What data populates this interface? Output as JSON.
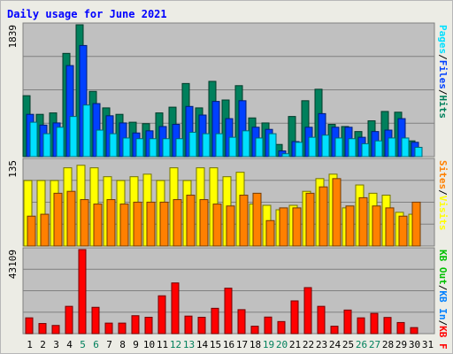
{
  "chart_data": [
    {
      "type": "bar",
      "panel": "pages_files_hits",
      "title": "Daily usage for June 2021",
      "ylabel_parts": [
        {
          "text": "Hits",
          "color": "#00805c"
        },
        {
          "text": "/",
          "color": "#000000"
        },
        {
          "text": "Files",
          "color": "#0040ff"
        },
        {
          "text": "/",
          "color": "#000000"
        },
        {
          "text": "Pages",
          "color": "#00e0ff"
        }
      ],
      "max_label": "1839",
      "ylim": [
        0,
        1839
      ],
      "categories": [
        "1",
        "2",
        "3",
        "4",
        "5",
        "6",
        "7",
        "8",
        "9",
        "10",
        "11",
        "12",
        "13",
        "14",
        "15",
        "16",
        "17",
        "18",
        "19",
        "20",
        "21",
        "22",
        "23",
        "24",
        "25",
        "26",
        "27",
        "28",
        "29",
        "30",
        "31"
      ],
      "series": [
        {
          "name": "Hits",
          "color": "#00805c",
          "values": [
            850,
            590,
            610,
            1440,
            1839,
            910,
            680,
            590,
            480,
            460,
            610,
            690,
            1020,
            680,
            1050,
            790,
            990,
            540,
            470,
            170,
            560,
            780,
            940,
            450,
            420,
            350,
            500,
            630,
            620,
            220,
            0
          ]
        },
        {
          "name": "Files",
          "color": "#0040ff",
          "values": [
            590,
            440,
            470,
            1270,
            1550,
            740,
            570,
            470,
            330,
            360,
            420,
            450,
            700,
            580,
            770,
            530,
            780,
            410,
            380,
            80,
            210,
            410,
            600,
            410,
            410,
            270,
            350,
            370,
            530,
            200,
            0
          ]
        },
        {
          "name": "Pages",
          "color": "#00e0ff",
          "values": [
            480,
            320,
            410,
            560,
            720,
            370,
            320,
            260,
            250,
            250,
            250,
            250,
            340,
            320,
            320,
            270,
            360,
            260,
            320,
            40,
            200,
            270,
            300,
            260,
            250,
            180,
            220,
            260,
            260,
            130,
            0
          ]
        }
      ]
    },
    {
      "type": "bar",
      "panel": "visits_sites",
      "ylabel_parts": [
        {
          "text": "Visits",
          "color": "#ffff00"
        },
        {
          "text": "/",
          "color": "#000000"
        },
        {
          "text": "Sites",
          "color": "#ff8000"
        }
      ],
      "max_label": "135",
      "ylim": [
        0,
        135
      ],
      "series": [
        {
          "name": "Visits",
          "color": "#ffff00",
          "values": [
            103,
            103,
            103,
            123,
            127,
            123,
            109,
            103,
            109,
            113,
            103,
            123,
            103,
            123,
            123,
            109,
            116,
            66,
            64,
            57,
            64,
            86,
            106,
            113,
            60,
            96,
            83,
            80,
            53,
            50,
            0
          ]
        },
        {
          "name": "Sites",
          "color": "#ff8000",
          "values": [
            47,
            50,
            83,
            86,
            73,
            66,
            73,
            66,
            69,
            69,
            69,
            73,
            80,
            73,
            66,
            63,
            80,
            83,
            40,
            60,
            60,
            83,
            93,
            106,
            63,
            76,
            63,
            60,
            47,
            69,
            0
          ]
        }
      ]
    },
    {
      "type": "bar",
      "panel": "kbytes",
      "ylabel_parts": [
        {
          "text": "KB F",
          "color": "#ff0000"
        },
        {
          "text": "/",
          "color": "#000000"
        },
        {
          "text": "KB In",
          "color": "#0080ff"
        },
        {
          "text": "/",
          "color": "#000000"
        },
        {
          "text": "KB Out",
          "color": "#00c000"
        }
      ],
      "max_label": "43109",
      "ylim": [
        0,
        43109
      ],
      "series": [
        {
          "name": "KB F",
          "color": "#ff0000",
          "values": [
            8100,
            5200,
            4200,
            14000,
            43109,
            13500,
            5400,
            5400,
            9200,
            8400,
            19400,
            26000,
            9000,
            8400,
            13000,
            23300,
            12300,
            3800,
            8500,
            6200,
            16800,
            23600,
            14000,
            3800,
            12100,
            8100,
            10400,
            8300,
            5700,
            3100,
            0
          ]
        }
      ]
    }
  ],
  "x_labels": [
    {
      "text": "1",
      "color": "#000000"
    },
    {
      "text": "2",
      "color": "#000000"
    },
    {
      "text": "3",
      "color": "#000000"
    },
    {
      "text": "4",
      "color": "#000000"
    },
    {
      "text": "5",
      "color": "#00805c"
    },
    {
      "text": "6",
      "color": "#00805c"
    },
    {
      "text": "7",
      "color": "#000000"
    },
    {
      "text": "8",
      "color": "#000000"
    },
    {
      "text": "9",
      "color": "#000000"
    },
    {
      "text": "10",
      "color": "#000000"
    },
    {
      "text": "11",
      "color": "#000000"
    },
    {
      "text": "12",
      "color": "#00805c"
    },
    {
      "text": "13",
      "color": "#00805c"
    },
    {
      "text": "14",
      "color": "#000000"
    },
    {
      "text": "15",
      "color": "#000000"
    },
    {
      "text": "16",
      "color": "#000000"
    },
    {
      "text": "17",
      "color": "#000000"
    },
    {
      "text": "18",
      "color": "#000000"
    },
    {
      "text": "19",
      "color": "#00805c"
    },
    {
      "text": "20",
      "color": "#00805c"
    },
    {
      "text": "21",
      "color": "#000000"
    },
    {
      "text": "22",
      "color": "#000000"
    },
    {
      "text": "23",
      "color": "#000000"
    },
    {
      "text": "24",
      "color": "#000000"
    },
    {
      "text": "25",
      "color": "#000000"
    },
    {
      "text": "26",
      "color": "#00805c"
    },
    {
      "text": "27",
      "color": "#00805c"
    },
    {
      "text": "28",
      "color": "#000000"
    },
    {
      "text": "29",
      "color": "#000000"
    },
    {
      "text": "30",
      "color": "#000000"
    },
    {
      "text": "31",
      "color": "#000000"
    }
  ],
  "colors": {
    "panel_background": "#c0c0c0",
    "frame_background": "#ecece5",
    "title_color": "#0000ff",
    "gridline": "#808080"
  }
}
